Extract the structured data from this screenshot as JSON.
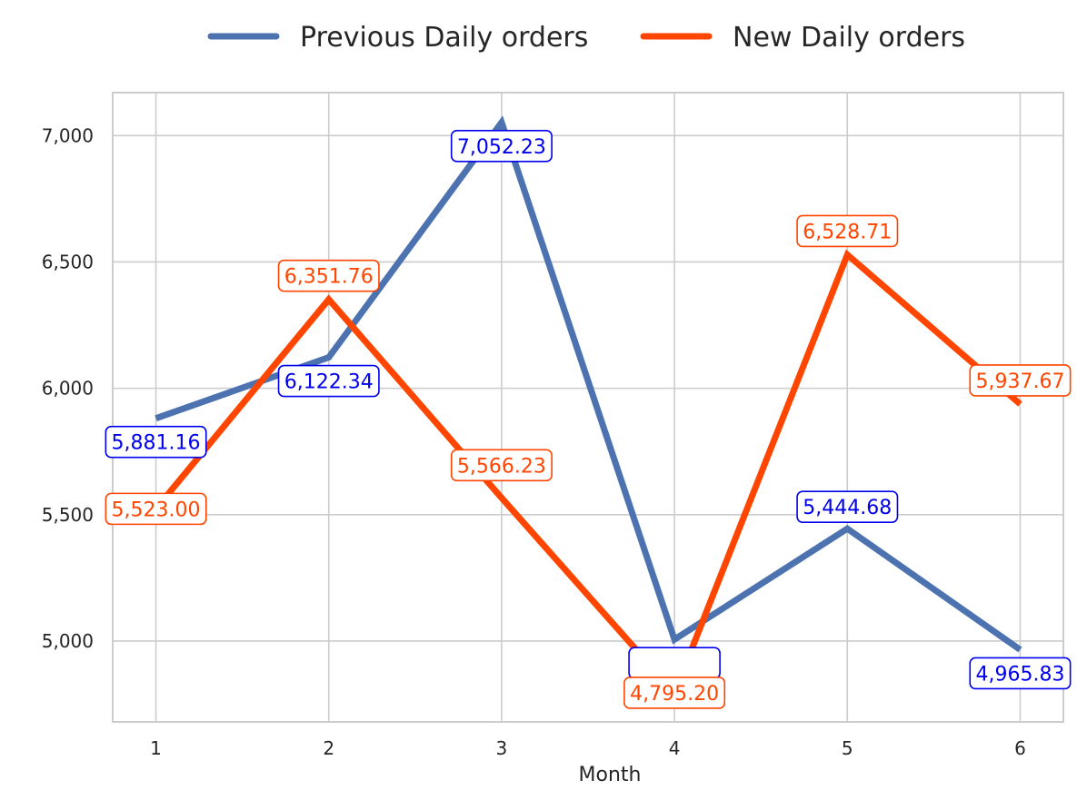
{
  "chart_data": {
    "type": "line",
    "xlabel": "Month",
    "ylabel": "",
    "x": [
      1,
      2,
      3,
      4,
      5,
      6
    ],
    "xticks": [
      "1",
      "2",
      "3",
      "4",
      "5",
      "6"
    ],
    "xlim": [
      0.75,
      6.25
    ],
    "ylim": [
      4680,
      7170
    ],
    "yticks": [
      5000,
      5500,
      6000,
      6500,
      7000
    ],
    "ytick_labels": [
      "5,000",
      "5,500",
      "6,000",
      "6,500",
      "7,000"
    ],
    "grid": true,
    "legend_position": "top-center",
    "series": [
      {
        "name": "Previous Daily orders",
        "color": "#4C72B0",
        "label_color": "#0000EE",
        "values": [
          5881.16,
          6122.34,
          7052.23,
          5006.2,
          5444.68,
          4965.83
        ],
        "labels": [
          "5,881.16",
          "6,122.34",
          "7,052.23",
          "",
          "5,444.68",
          "4,965.83"
        ]
      },
      {
        "name": "New Daily orders",
        "color": "#FF4500",
        "label_color": "#FF4500",
        "values": [
          5523.0,
          6351.76,
          5566.23,
          4795.2,
          6528.71,
          5937.67
        ],
        "labels": [
          "5,523.00",
          "6,351.76",
          "5,566.23",
          "4,795.20",
          "6,528.71",
          "5,937.67"
        ]
      }
    ]
  }
}
